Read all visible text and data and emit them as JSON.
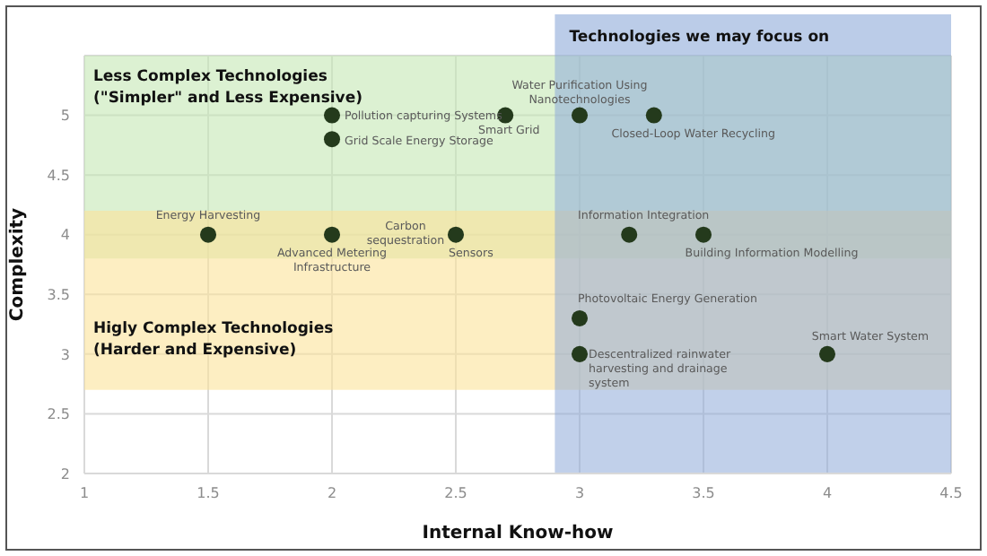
{
  "chart_data": {
    "type": "scatter",
    "xlabel": "Internal Know-how",
    "ylabel": "Complexity",
    "xlim": [
      1,
      4.5
    ],
    "xticks": [
      1,
      1.5,
      2,
      2.5,
      3,
      3.5,
      4,
      4.5
    ],
    "ylim": [
      2,
      5.5
    ],
    "yticks": [
      2,
      2.5,
      3,
      3.5,
      4,
      4.5,
      5
    ],
    "grid": true,
    "marker": "circle",
    "series": [
      {
        "color": "#243a1c",
        "x": [
          2,
          2,
          2.7,
          3,
          3.3,
          1.5,
          2,
          2.5,
          3.2,
          3.5,
          3,
          3,
          4
        ],
        "values": [
          5,
          4.8,
          5,
          5,
          5,
          4,
          4,
          4,
          4,
          4,
          3.3,
          3,
          3
        ]
      }
    ],
    "bands": [
      {
        "axis": "y",
        "from": 3.8,
        "to": 5.5,
        "label": "Less Complex Technologies\n(\"Simpler\" and Less Expensive)",
        "color": "#c5e8b4"
      },
      {
        "axis": "y",
        "from": 2.7,
        "to": 4.2,
        "label": "Higly Complex Technologies\n(Harder and Expensive)",
        "color": "#fbe39a"
      },
      {
        "axis": "x",
        "from": 2.9,
        "to": 4.5,
        "label": "Technologies we may focus on",
        "color": "#8eaad8"
      }
    ],
    "annotations": [
      {
        "text": "Pollution capturing Systems",
        "x": 2,
        "y": 5
      },
      {
        "text": "Grid Scale Energy Storage",
        "x": 2,
        "y": 4.8
      },
      {
        "text": "Smart Grid",
        "x": 2.7,
        "y": 5
      },
      {
        "text": "Water Purification Using Nanotechnologies",
        "x": 3,
        "y": 5
      },
      {
        "text": "Closed-Loop Water Recycling",
        "x": 3.3,
        "y": 5
      },
      {
        "text": "Energy Harvesting",
        "x": 1.5,
        "y": 4
      },
      {
        "text": "Advanced Metering Infrastructure",
        "x": 2,
        "y": 4
      },
      {
        "text": "Carbon sequestration",
        "x": 2.5,
        "y": 4
      },
      {
        "text": "Sensors",
        "x": 2.5,
        "y": 4
      },
      {
        "text": "Information Integration",
        "x": 3.2,
        "y": 4
      },
      {
        "text": "Building Information Modelling",
        "x": 3.5,
        "y": 4
      },
      {
        "text": "Photovoltaic Energy Generation",
        "x": 3,
        "y": 3.3
      },
      {
        "text": "Descentralized rainwater harvesting and drainage system",
        "x": 3,
        "y": 3
      },
      {
        "text": "Smart Water System",
        "x": 4,
        "y": 3
      }
    ]
  }
}
